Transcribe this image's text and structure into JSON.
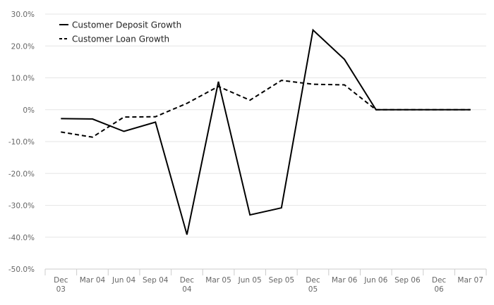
{
  "chart_data": {
    "type": "line",
    "categories": [
      "Dec 03",
      "Mar 04",
      "Jun 04",
      "Sep 04",
      "Dec 04",
      "Mar 05",
      "Jun 05",
      "Sep 05",
      "Dec 05",
      "Mar 06",
      "Jun 06",
      "Sep 06",
      "Dec 06",
      "Mar 07"
    ],
    "category_lines": [
      [
        "Dec",
        "03"
      ],
      [
        "Mar 04"
      ],
      [
        "Jun 04"
      ],
      [
        "Sep 04"
      ],
      [
        "Dec",
        "04"
      ],
      [
        "Mar 05"
      ],
      [
        "Jun 05"
      ],
      [
        "Sep 05"
      ],
      [
        "Dec",
        "05"
      ],
      [
        "Mar 06"
      ],
      [
        "Jun 06"
      ],
      [
        "Sep 06"
      ],
      [
        "Dec",
        "06"
      ],
      [
        "Mar 07"
      ]
    ],
    "series": [
      {
        "name": "Customer Deposit Growth",
        "style": "solid",
        "values": [
          -2.8,
          -2.9,
          -6.8,
          -3.9,
          -39.2,
          8.8,
          -33.0,
          -30.8,
          25.0,
          15.8,
          0.0,
          0.0,
          0.0,
          0.0
        ]
      },
      {
        "name": "Customer Loan Growth",
        "style": "dashed",
        "values": [
          -7.0,
          -8.6,
          -2.3,
          -2.2,
          2.0,
          7.3,
          3.0,
          9.2,
          8.0,
          7.8,
          0.0,
          0.0,
          0.0,
          0.0
        ]
      }
    ],
    "ylim": [
      -50,
      30
    ],
    "yticks": [
      -50,
      -40,
      -30,
      -20,
      -10,
      0,
      10,
      20,
      30
    ],
    "ytick_labels": [
      "-50.0%",
      "-40.0%",
      "-30.0%",
      "-20.0%",
      "-10.0%",
      "0%",
      "10.0%",
      "20.0%",
      "30.0%"
    ],
    "title": "",
    "xlabel": "",
    "ylabel": "",
    "grid": "horizontal",
    "legend_position": "top-left",
    "colors": {
      "line": "#000000",
      "grid": "#e6e6e6",
      "axis": "#cccccc",
      "tick_text": "#666666"
    }
  }
}
